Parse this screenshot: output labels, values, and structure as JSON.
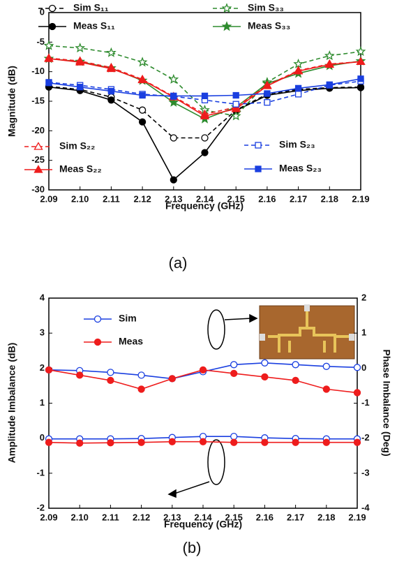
{
  "chart_data": [
    {
      "type": "line",
      "x_label": "Frequency (GHz)",
      "y_label": "Magnitude (dB)",
      "caption": "(a)",
      "x": [
        2.09,
        2.1,
        2.11,
        2.12,
        2.13,
        2.14,
        2.15,
        2.16,
        2.17,
        2.18,
        2.19
      ],
      "xlim": [
        2.09,
        2.19
      ],
      "xticks": [
        {
          "value": 2.09,
          "label": "2.09"
        },
        {
          "value": 2.1,
          "label": "2.10"
        },
        {
          "value": 2.11,
          "label": "2.11"
        },
        {
          "value": 2.12,
          "label": "2.12"
        },
        {
          "value": 2.13,
          "label": "2.13"
        },
        {
          "value": 2.14,
          "label": "2.14"
        },
        {
          "value": 2.15,
          "label": "2.15"
        },
        {
          "value": 2.16,
          "label": "2.16"
        },
        {
          "value": 2.17,
          "label": "2.17"
        },
        {
          "value": 2.18,
          "label": "2.18"
        },
        {
          "value": 2.19,
          "label": "2.19"
        }
      ],
      "ylim": [
        -30,
        0
      ],
      "yticks": [
        0,
        -5,
        -10,
        -15,
        -20,
        -25,
        -30
      ],
      "series": [
        {
          "name": "Sim S₁₁",
          "color": "#000000",
          "dash": true,
          "marker": "circle",
          "filled": false,
          "values": [
            -12.5,
            -13,
            -14.3,
            -16.5,
            -21.2,
            -21.2,
            -16.5,
            -13.8,
            -13,
            -12.7,
            -12.6
          ]
        },
        {
          "name": "Meas S₁₁",
          "color": "#000000",
          "dash": false,
          "marker": "circle",
          "filled": true,
          "values": [
            -12.6,
            -13.2,
            -14.8,
            -18.5,
            -28.3,
            -23.7,
            -16.6,
            -14,
            -13.2,
            -12.8,
            -12.7
          ]
        },
        {
          "name": "Sim S₃₃",
          "color": "#2e8b2e",
          "dash": true,
          "marker": "star",
          "filled": false,
          "values": [
            -5.6,
            -6,
            -6.8,
            -8.4,
            -11.3,
            -16.5,
            -17.5,
            -11.8,
            -8.7,
            -7.3,
            -6.6
          ]
        },
        {
          "name": "Meas S₃₃",
          "color": "#2e8b2e",
          "dash": false,
          "marker": "star",
          "filled": true,
          "values": [
            -7.8,
            -8.3,
            -9.4,
            -11.5,
            -15.2,
            -18,
            -16,
            -12,
            -10.3,
            -9,
            -8.2
          ]
        },
        {
          "name": "Sim S₂₂",
          "color": "#ee1c1c",
          "dash": true,
          "marker": "triangle",
          "filled": false,
          "values": [
            -7.7,
            -8.2,
            -9.3,
            -11.3,
            -14.2,
            -17.2,
            -16,
            -12.3,
            -9.8,
            -8.7,
            -8.3
          ]
        },
        {
          "name": "Meas S₂₂",
          "color": "#ee1c1c",
          "dash": false,
          "marker": "triangle",
          "filled": true,
          "values": [
            -7.8,
            -8.4,
            -9.5,
            -11.4,
            -14.3,
            -17.5,
            -16.3,
            -12.4,
            -9.9,
            -8.8,
            -8.3
          ]
        },
        {
          "name": "Sim S₂₃",
          "color": "#1a3fe0",
          "dash": true,
          "marker": "square",
          "filled": false,
          "values": [
            -11.8,
            -12.3,
            -13,
            -13.8,
            -14.2,
            -14.8,
            -15.5,
            -15.2,
            -13.8,
            -12.3,
            -11.6
          ]
        },
        {
          "name": "Meas S₂₃",
          "color": "#1a3fe0",
          "dash": false,
          "marker": "square",
          "filled": true,
          "values": [
            -11.9,
            -12.6,
            -13.3,
            -14,
            -14.1,
            -14.1,
            -14,
            -13.7,
            -12.8,
            -12.2,
            -11.2
          ]
        }
      ]
    },
    {
      "type": "line",
      "x_label": "Frequency (GHz)",
      "y_label": "Amplitude Imbalance (dB)",
      "y2_label": "Phase Imbalance (Deg)",
      "caption": "(b)",
      "x": [
        2.09,
        2.1,
        2.11,
        2.12,
        2.13,
        2.14,
        2.15,
        2.16,
        2.17,
        2.18,
        2.19
      ],
      "xlim": [
        2.09,
        2.19
      ],
      "xticks": [
        {
          "value": 2.09,
          "label": "2.09"
        },
        {
          "value": 2.1,
          "label": "2.10"
        },
        {
          "value": 2.11,
          "label": "2.11"
        },
        {
          "value": 2.12,
          "label": "2.12"
        },
        {
          "value": 2.13,
          "label": "2.13"
        },
        {
          "value": 2.14,
          "label": "2.14"
        },
        {
          "value": 2.15,
          "label": "2.15"
        },
        {
          "value": 2.16,
          "label": "2.16"
        },
        {
          "value": 2.17,
          "label": "2.17"
        },
        {
          "value": 2.18,
          "label": "2.18"
        },
        {
          "value": 2.19,
          "label": "2.19"
        }
      ],
      "ylim": [
        -2,
        4
      ],
      "yticks": [
        4,
        3,
        2,
        1,
        0,
        -1,
        -2
      ],
      "y2lim": [
        -4,
        2
      ],
      "y2ticks": [
        2,
        1,
        0,
        -1,
        -2,
        -3,
        -4
      ],
      "series": [
        {
          "name": "Sim",
          "color": "#1a3fe0",
          "dash": false,
          "marker": "circle",
          "filled": false,
          "values": [
            -0.02,
            -0.02,
            -0.02,
            -0.01,
            0.02,
            0.05,
            0.05,
            0.01,
            -0.01,
            -0.02,
            -0.02
          ]
        },
        {
          "name": "Meas",
          "color": "#ee1c1c",
          "dash": false,
          "marker": "circle",
          "filled": true,
          "values": [
            -0.12,
            -0.14,
            -0.13,
            -0.12,
            -0.1,
            -0.1,
            -0.12,
            -0.12,
            -0.12,
            -0.12,
            -0.12
          ]
        },
        {
          "color": "#1a3fe0",
          "dash": false,
          "marker": "circle",
          "filled": false,
          "axis": "y2",
          "values": [
            -0.05,
            -0.07,
            -0.12,
            -0.2,
            -0.3,
            -0.1,
            0.1,
            0.15,
            0.1,
            0.05,
            0.02
          ]
        },
        {
          "color": "#ee1c1c",
          "dash": false,
          "marker": "circle",
          "filled": true,
          "axis": "y2",
          "values": [
            -0.05,
            -0.2,
            -0.35,
            -0.6,
            -0.3,
            -0.05,
            -0.15,
            -0.25,
            -0.35,
            -0.6,
            -0.7
          ]
        }
      ]
    }
  ]
}
